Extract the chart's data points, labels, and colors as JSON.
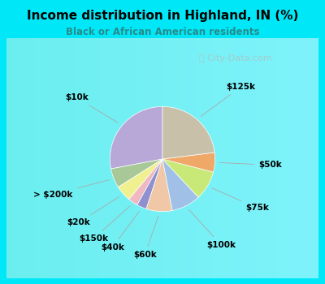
{
  "title": "Income distribution in Highland, IN (%)",
  "subtitle": "Black or African American residents",
  "title_color": "#000000",
  "subtitle_color": "#2a8a8a",
  "bg_outer": "#00e8f8",
  "bg_inner": "#ddf0e8",
  "labels": [
    "$10k",
    "> $200k",
    "$20k",
    "$150k",
    "$40k",
    "$60k",
    "$100k",
    "$75k",
    "$50k",
    "$125k"
  ],
  "values": [
    28,
    6,
    5,
    3,
    3,
    8,
    9,
    9,
    6,
    23
  ],
  "colors": [
    "#b8a8d8",
    "#a8c898",
    "#f0f090",
    "#f0b8c0",
    "#9090d0",
    "#f0c8a8",
    "#a0c0e8",
    "#c8e878",
    "#f0a868",
    "#c8c0a8"
  ],
  "startangle": 90,
  "label_fontsize": 7.5,
  "label_color": "#000000",
  "watermark": "ⓘ City-Data.com"
}
